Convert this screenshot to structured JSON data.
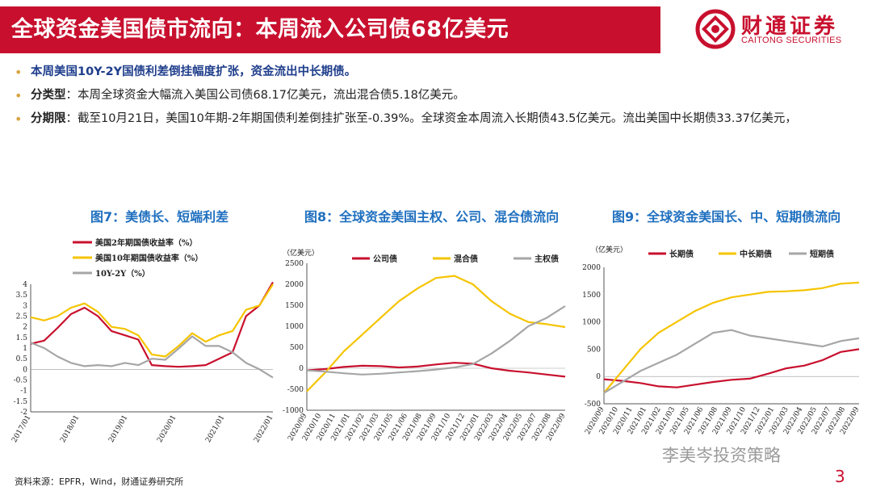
{
  "header": {
    "title": "全球资金美国债市流向：本周流入公司债68亿美元",
    "logo_cn": "财通证券",
    "logo_en": "CAITONG SECURITIES"
  },
  "bullets": [
    {
      "text": "本周美国10Y-2Y国债利差倒挂幅度扩张，资金流出中长期债。"
    },
    {
      "label": "分类型",
      "text": "：本周全球资金大幅流入美国公司债68.17亿美元，流出混合债5.18亿美元。"
    },
    {
      "label": "分期限",
      "text": "：截至10月21日，美国10年期-2年期国债利差倒挂扩张至-0.39%。全球资金本周流入长期债43.5亿美元。流出美国中长期债33.37亿美元，"
    }
  ],
  "source": "资料来源：EPFR，Wind，财通证券研究所",
  "watermark": "李美岑投资策略",
  "page_number": "3",
  "colors": {
    "red": "#c8102e",
    "yellow": "#f5c400",
    "gray": "#a6a6a6",
    "blue_title": "#1f6fbf"
  },
  "chart_data": [
    {
      "type": "line",
      "title": "图7：美债长、短端利差",
      "ylim": [
        -2,
        4
      ],
      "yticks": [
        "4",
        "3.5",
        "3",
        "2.5",
        "2",
        "1.5",
        "1",
        "0.5",
        "0",
        "-0.5",
        "-1",
        "-1.5",
        "-2"
      ],
      "xticks": [
        "2017/01",
        "2018/01",
        "2019/01",
        "2020/01",
        "2021/01",
        "2022/01"
      ],
      "x": [
        "2017/01",
        "2017/07",
        "2018/01",
        "2018/07",
        "2018/11",
        "2019/01",
        "2019/07",
        "2019/12",
        "2020/02",
        "2020/04",
        "2020/08",
        "2021/01",
        "2021/03",
        "2021/07",
        "2021/11",
        "2022/01",
        "2022/04",
        "2022/07",
        "2022/10"
      ],
      "series": [
        {
          "name": "美国2年期国债收益率（%）",
          "color": "#c8102e",
          "values": [
            1.2,
            1.35,
            1.95,
            2.6,
            2.9,
            2.5,
            1.8,
            1.6,
            1.4,
            0.2,
            0.15,
            0.12,
            0.15,
            0.2,
            0.5,
            0.8,
            2.5,
            3.0,
            4.1
          ]
        },
        {
          "name": "美国10年期国债收益率（%）",
          "color": "#f5c400",
          "values": [
            2.45,
            2.3,
            2.5,
            2.9,
            3.1,
            2.7,
            2.0,
            1.9,
            1.6,
            0.7,
            0.6,
            1.1,
            1.7,
            1.3,
            1.6,
            1.8,
            2.8,
            3.0,
            4.0
          ]
        },
        {
          "name": "10Y-2Y（%）",
          "color": "#a6a6a6",
          "values": [
            1.25,
            1.0,
            0.6,
            0.3,
            0.15,
            0.2,
            0.15,
            0.3,
            0.2,
            0.5,
            0.45,
            0.98,
            1.55,
            1.1,
            1.1,
            0.8,
            0.3,
            0.0,
            -0.39
          ]
        }
      ]
    },
    {
      "type": "line",
      "title": "图8：全球资金美国主权、公司、混合债流向",
      "unit": "（亿美元）",
      "ylim": [
        -1000,
        2500
      ],
      "yticks": [
        "2500",
        "2000",
        "1500",
        "1000",
        "500",
        "0",
        "-500",
        "-1000"
      ],
      "xticks": [
        "2020/09",
        "2020/10",
        "2020/11",
        "2021/01",
        "2021/02",
        "2021/03",
        "2021/05",
        "2021/06",
        "2021/08",
        "2021/09",
        "2021/10",
        "2021/12",
        "2022/01",
        "2022/03",
        "2022/04",
        "2022/05",
        "2022/07",
        "2022/08",
        "2022/09"
      ],
      "x": [
        "2020/09",
        "2020/10",
        "2020/11",
        "2021/01",
        "2021/03",
        "2021/05",
        "2021/07",
        "2021/09",
        "2021/11",
        "2022/01",
        "2022/03",
        "2022/05",
        "2022/07",
        "2022/08",
        "2022/10"
      ],
      "series": [
        {
          "name": "公司债",
          "color": "#c8102e",
          "values": [
            -50,
            -20,
            30,
            60,
            50,
            20,
            40,
            90,
            130,
            110,
            0,
            -60,
            -100,
            -150,
            -200
          ]
        },
        {
          "name": "混合债",
          "color": "#f5c400",
          "values": [
            -550,
            -100,
            400,
            800,
            1200,
            1600,
            1900,
            2150,
            2200,
            2000,
            1600,
            1300,
            1100,
            1050,
            980
          ]
        },
        {
          "name": "主权债",
          "color": "#a6a6a6",
          "values": [
            -50,
            -80,
            -120,
            -150,
            -130,
            -100,
            -70,
            -30,
            20,
            100,
            350,
            650,
            1000,
            1200,
            1480
          ]
        }
      ]
    },
    {
      "type": "line",
      "title": "图9：全球资金美国长、中、短期债流向",
      "unit": "（亿美元）",
      "ylim": [
        -500,
        2000
      ],
      "yticks": [
        "2000",
        "1500",
        "1000",
        "500",
        "0",
        "-500"
      ],
      "xticks": [
        "2020/09",
        "2020/10",
        "2020/11",
        "2021/01",
        "2021/02",
        "2021/03",
        "2021/05",
        "2021/06",
        "2021/08",
        "2021/09",
        "2021/10",
        "2021/12",
        "2022/01",
        "2022/03",
        "2022/04",
        "2022/05",
        "2022/07",
        "2022/08",
        "2022/09"
      ],
      "x": [
        "2020/09",
        "2020/10",
        "2020/11",
        "2021/01",
        "2021/03",
        "2021/05",
        "2021/07",
        "2021/09",
        "2021/11",
        "2022/01",
        "2022/03",
        "2022/05",
        "2022/07",
        "2022/08",
        "2022/10"
      ],
      "series": [
        {
          "name": "长期债",
          "color": "#c8102e",
          "values": [
            -50,
            -80,
            -120,
            -180,
            -200,
            -150,
            -100,
            -60,
            -40,
            50,
            150,
            200,
            300,
            450,
            500
          ]
        },
        {
          "name": "中长期债",
          "color": "#f5c400",
          "values": [
            -300,
            100,
            500,
            800,
            1000,
            1200,
            1350,
            1450,
            1500,
            1550,
            1560,
            1580,
            1620,
            1700,
            1720
          ]
        },
        {
          "name": "短期债",
          "color": "#a6a6a6",
          "values": [
            -300,
            -100,
            100,
            250,
            400,
            600,
            800,
            850,
            750,
            700,
            650,
            600,
            550,
            650,
            700
          ]
        }
      ]
    }
  ]
}
